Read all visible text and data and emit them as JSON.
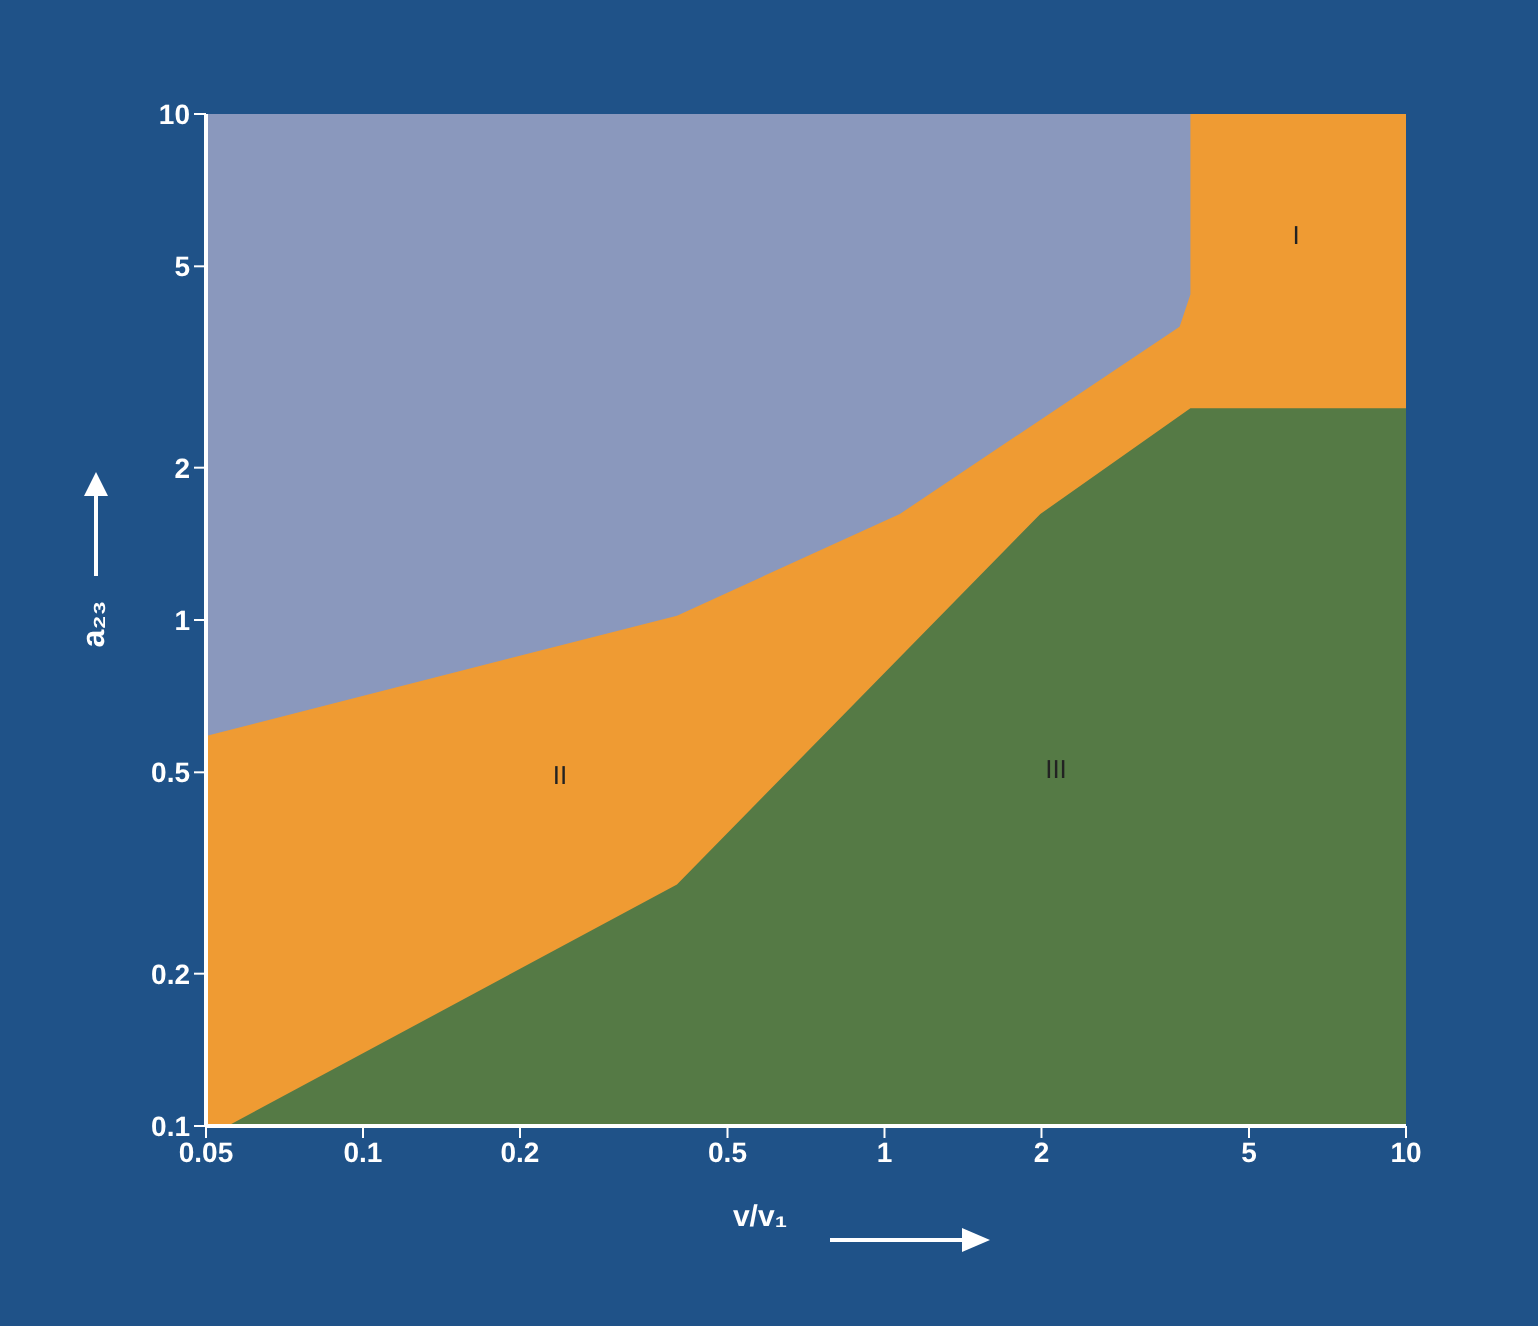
{
  "chart_data": {
    "type": "area",
    "xlabel": "v/v₁",
    "ylabel": "a₂₃",
    "log": "xy",
    "xlim": [
      0.05,
      10
    ],
    "ylim": [
      0.1,
      10
    ],
    "xticks": [
      0.05,
      0.1,
      0.2,
      0.5,
      1,
      2,
      5,
      10
    ],
    "yticks": [
      0.1,
      0.2,
      0.5,
      1,
      2,
      5,
      10
    ],
    "series": [
      {
        "color": "#ef9b33",
        "x": [
          0.05,
          0.4,
          1.07,
          3.68,
          3.86,
          3.86,
          10
        ],
        "values": [
          0.59,
          1.02,
          1.62,
          3.8,
          4.4,
          10,
          10
        ]
      },
      {
        "color": "#557a45",
        "x": [
          0.055,
          0.4,
          1.99,
          3.86,
          10
        ],
        "values": [
          0.1,
          0.3,
          1.62,
          2.62,
          2.62
        ]
      }
    ],
    "annotations": [
      "I",
      "II",
      "III"
    ]
  }
}
